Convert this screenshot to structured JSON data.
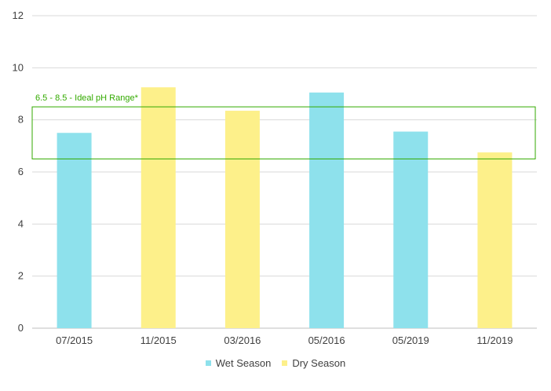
{
  "chart_data": {
    "type": "bar",
    "categories": [
      "07/2015",
      "11/2015",
      "03/2016",
      "05/2016",
      "05/2019",
      "11/2019"
    ],
    "values": [
      7.5,
      9.25,
      8.35,
      9.05,
      7.55,
      6.75
    ],
    "bar_series": [
      "Wet Season",
      "Dry Season",
      "Dry Season",
      "Wet Season",
      "Wet Season",
      "Dry Season"
    ],
    "series": [
      {
        "name": "Wet Season",
        "color": "#8EE1EC"
      },
      {
        "name": "Dry Season",
        "color": "#FDF08A"
      }
    ],
    "ylim": [
      0,
      12
    ],
    "yticks": [
      0,
      2,
      4,
      6,
      8,
      10,
      12
    ],
    "grid": true,
    "legend_position": "bottom",
    "annotation": {
      "label": "6.5 - 8.5 - Ideal pH Range*",
      "range": [
        6.5,
        8.5
      ],
      "color": "#33AA00"
    }
  }
}
